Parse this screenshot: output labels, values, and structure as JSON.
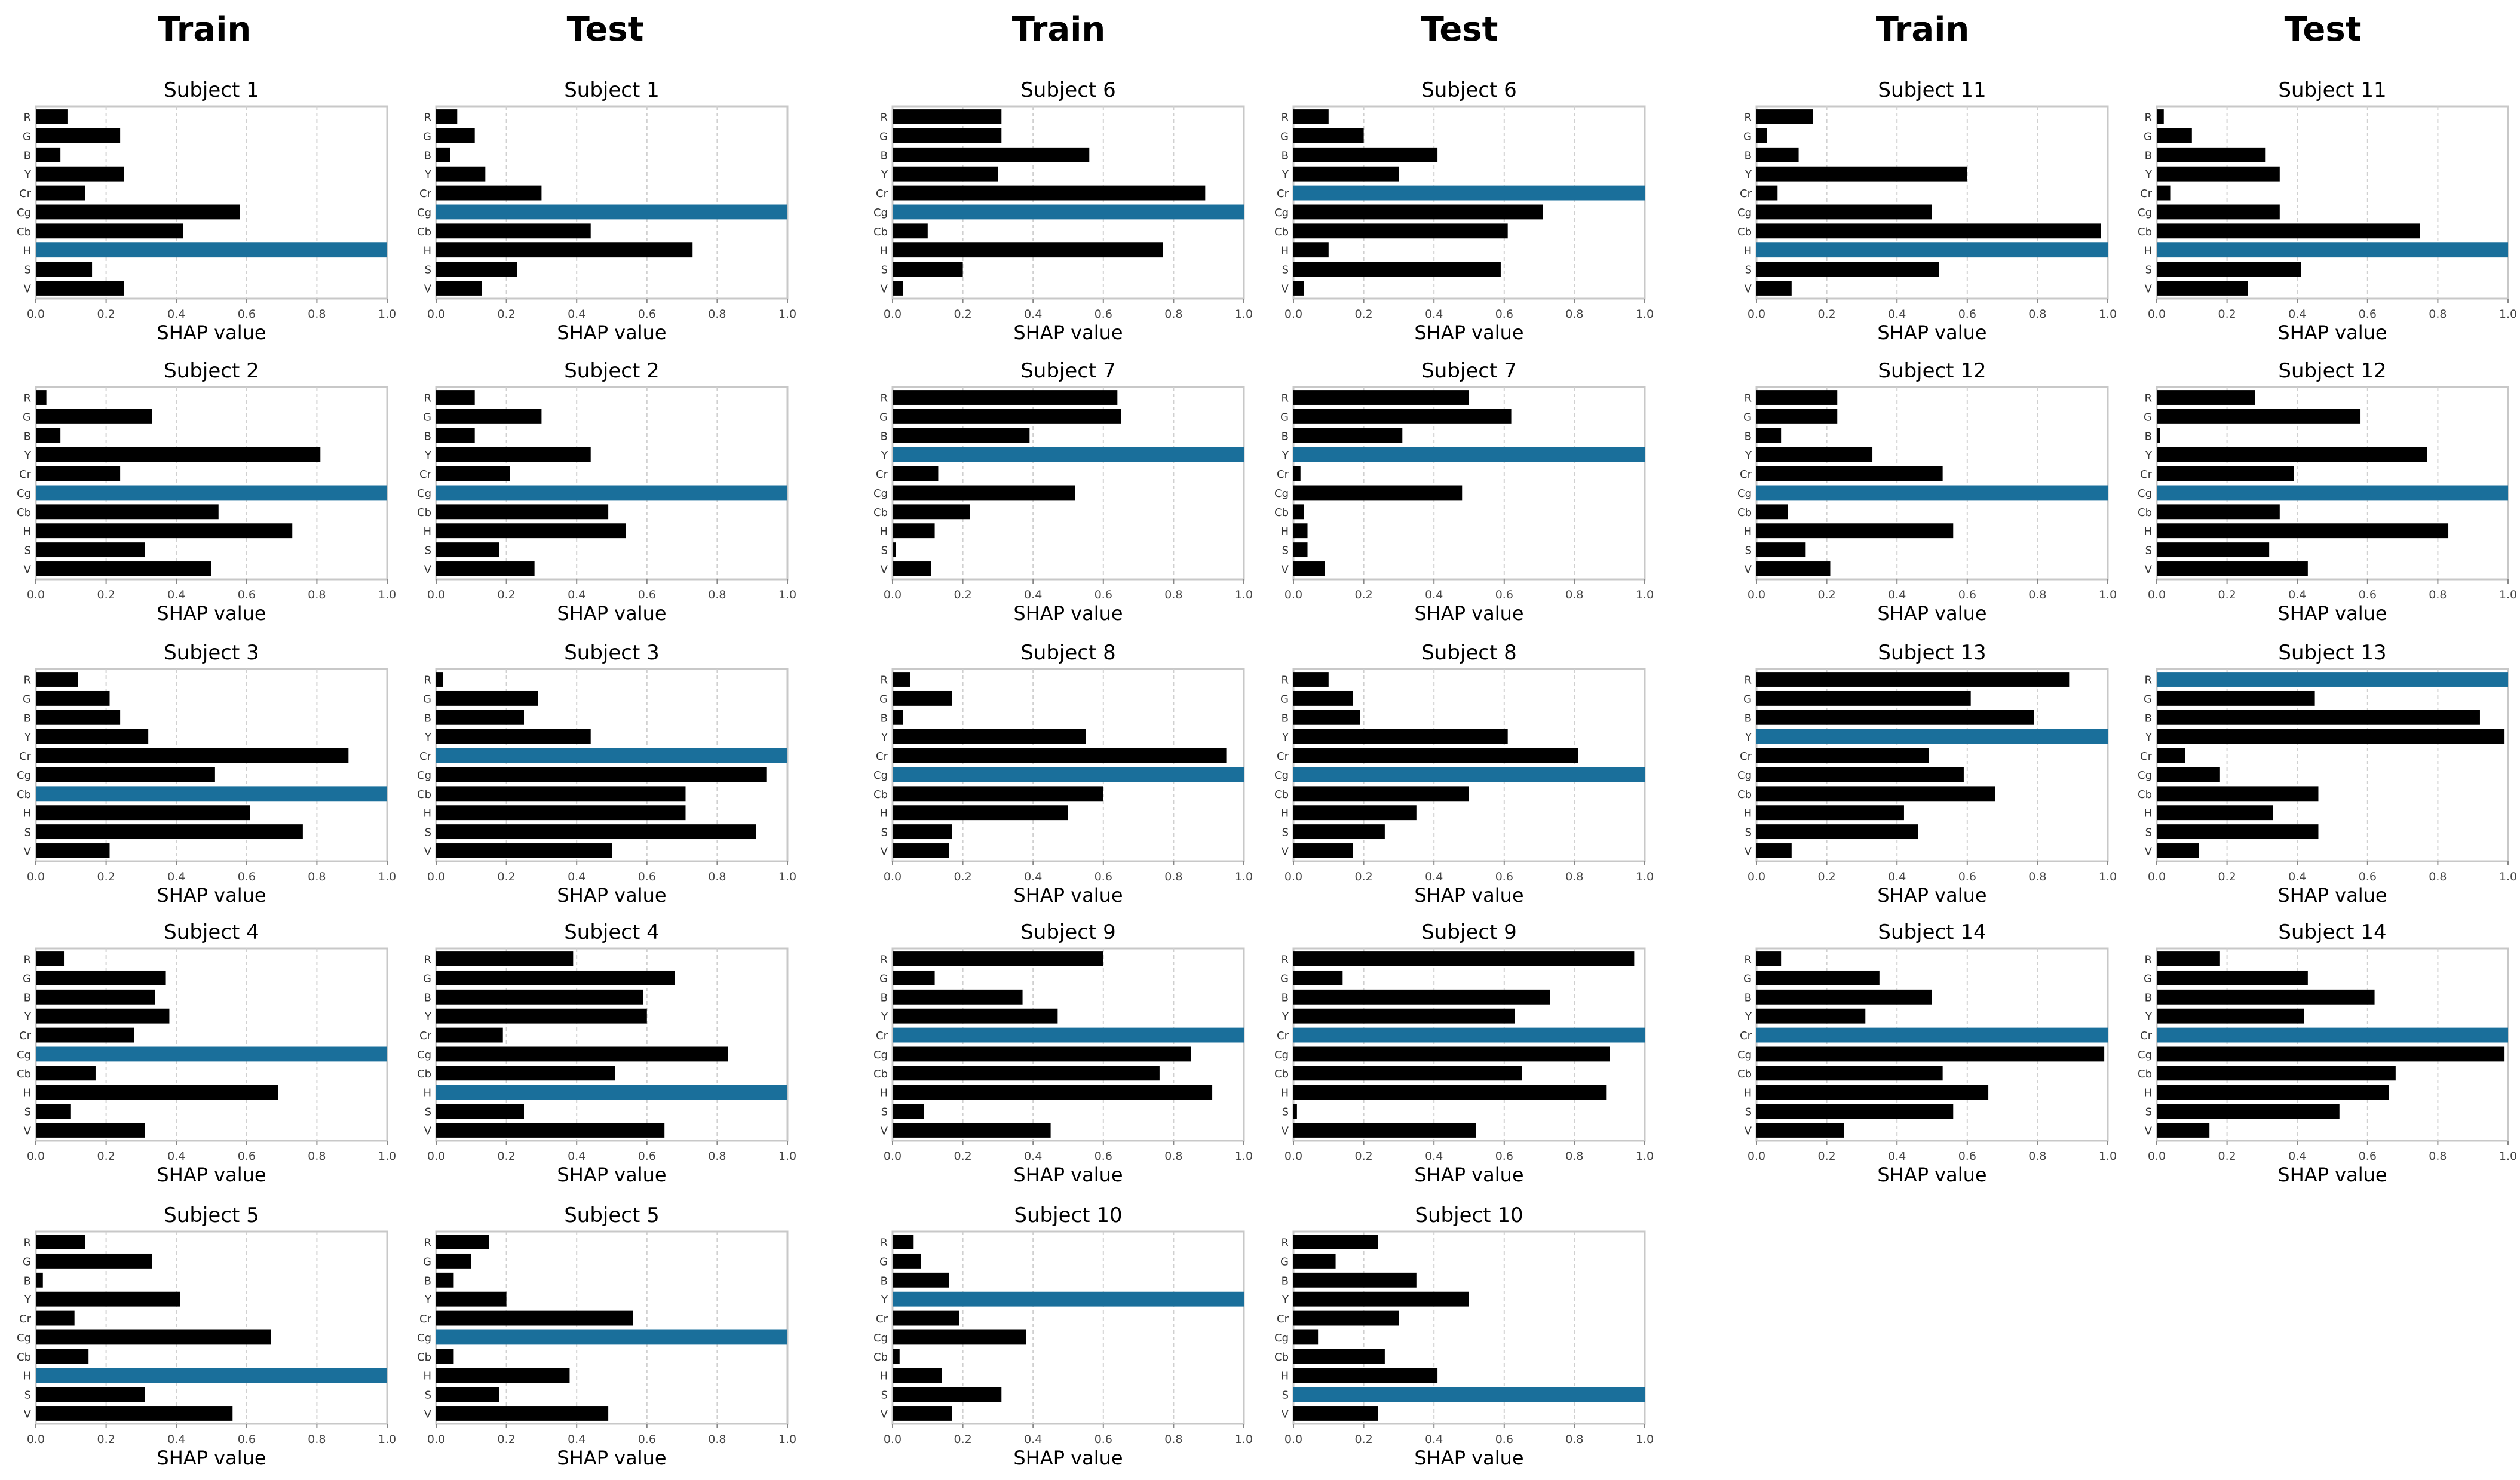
{
  "figure": {
    "column_headers": [
      "Train",
      "Test",
      "Train",
      "Test",
      "Train",
      "Test"
    ],
    "bar_color": "#000000",
    "highlight_color": "#1a6f9b",
    "axis_color": "#c8c8c8",
    "grid_color": "#d0d0d0"
  },
  "chart_data": {
    "type": "bar",
    "orientation": "horizontal",
    "features": [
      "R",
      "G",
      "B",
      "Y",
      "Cr",
      "Cg",
      "Cb",
      "H",
      "S",
      "V"
    ],
    "xlabel": "SHAP value",
    "xlim": [
      0,
      1.0
    ],
    "xticks": [
      "0.0",
      "0.2",
      "0.4",
      "0.6",
      "0.8",
      "1.0"
    ],
    "panels": [
      {
        "title": "Subject 1",
        "split": "Train",
        "values": [
          0.09,
          0.24,
          0.07,
          0.25,
          0.14,
          0.58,
          0.42,
          1.0,
          0.16,
          0.25
        ]
      },
      {
        "title": "Subject 1",
        "split": "Test",
        "values": [
          0.06,
          0.11,
          0.04,
          0.14,
          0.3,
          1.0,
          0.44,
          0.73,
          0.23,
          0.13
        ]
      },
      {
        "title": "Subject 2",
        "split": "Train",
        "values": [
          0.03,
          0.33,
          0.07,
          0.81,
          0.24,
          1.0,
          0.52,
          0.73,
          0.31,
          0.5
        ]
      },
      {
        "title": "Subject 2",
        "split": "Test",
        "values": [
          0.11,
          0.3,
          0.11,
          0.44,
          0.21,
          1.0,
          0.49,
          0.54,
          0.18,
          0.28
        ]
      },
      {
        "title": "Subject 3",
        "split": "Train",
        "values": [
          0.12,
          0.21,
          0.24,
          0.32,
          0.89,
          0.51,
          1.0,
          0.61,
          0.76,
          0.21
        ]
      },
      {
        "title": "Subject 3",
        "split": "Test",
        "values": [
          0.02,
          0.29,
          0.25,
          0.44,
          1.0,
          0.94,
          0.71,
          0.71,
          0.91,
          0.5
        ]
      },
      {
        "title": "Subject 4",
        "split": "Train",
        "values": [
          0.08,
          0.37,
          0.34,
          0.38,
          0.28,
          1.0,
          0.17,
          0.69,
          0.1,
          0.31
        ]
      },
      {
        "title": "Subject 4",
        "split": "Test",
        "values": [
          0.39,
          0.68,
          0.59,
          0.6,
          0.19,
          0.83,
          0.51,
          1.0,
          0.25,
          0.65
        ]
      },
      {
        "title": "Subject 5",
        "split": "Train",
        "values": [
          0.14,
          0.33,
          0.02,
          0.41,
          0.11,
          0.67,
          0.15,
          1.0,
          0.31,
          0.56
        ]
      },
      {
        "title": "Subject 5",
        "split": "Test",
        "values": [
          0.15,
          0.1,
          0.05,
          0.2,
          0.56,
          1.0,
          0.05,
          0.38,
          0.18,
          0.49
        ]
      },
      {
        "title": "Subject 6",
        "split": "Train",
        "values": [
          0.31,
          0.31,
          0.56,
          0.3,
          0.89,
          1.0,
          0.1,
          0.77,
          0.2,
          0.03
        ]
      },
      {
        "title": "Subject 6",
        "split": "Test",
        "values": [
          0.1,
          0.2,
          0.41,
          0.3,
          1.0,
          0.71,
          0.61,
          0.1,
          0.59,
          0.03
        ]
      },
      {
        "title": "Subject 7",
        "split": "Train",
        "values": [
          0.64,
          0.65,
          0.39,
          1.0,
          0.13,
          0.52,
          0.22,
          0.12,
          0.01,
          0.11
        ]
      },
      {
        "title": "Subject 7",
        "split": "Test",
        "values": [
          0.5,
          0.62,
          0.31,
          1.0,
          0.02,
          0.48,
          0.03,
          0.04,
          0.04,
          0.09
        ]
      },
      {
        "title": "Subject 8",
        "split": "Train",
        "values": [
          0.05,
          0.17,
          0.03,
          0.55,
          0.95,
          1.0,
          0.6,
          0.5,
          0.17,
          0.16
        ]
      },
      {
        "title": "Subject 8",
        "split": "Test",
        "values": [
          0.1,
          0.17,
          0.19,
          0.61,
          0.81,
          1.0,
          0.5,
          0.35,
          0.26,
          0.17
        ]
      },
      {
        "title": "Subject 9",
        "split": "Train",
        "values": [
          0.6,
          0.12,
          0.37,
          0.47,
          1.0,
          0.85,
          0.76,
          0.91,
          0.09,
          0.45
        ]
      },
      {
        "title": "Subject 9",
        "split": "Test",
        "values": [
          0.97,
          0.14,
          0.73,
          0.63,
          1.0,
          0.9,
          0.65,
          0.89,
          0.01,
          0.52
        ]
      },
      {
        "title": "Subject 10",
        "split": "Train",
        "values": [
          0.06,
          0.08,
          0.16,
          1.0,
          0.19,
          0.38,
          0.02,
          0.14,
          0.31,
          0.17
        ]
      },
      {
        "title": "Subject 10",
        "split": "Test",
        "values": [
          0.24,
          0.12,
          0.35,
          0.5,
          0.3,
          0.07,
          0.26,
          0.41,
          1.0,
          0.24
        ]
      },
      {
        "title": "Subject 11",
        "split": "Train",
        "values": [
          0.16,
          0.03,
          0.12,
          0.6,
          0.06,
          0.5,
          0.98,
          1.0,
          0.52,
          0.1
        ]
      },
      {
        "title": "Subject 11",
        "split": "Test",
        "values": [
          0.02,
          0.1,
          0.31,
          0.35,
          0.04,
          0.35,
          0.75,
          1.0,
          0.41,
          0.26
        ]
      },
      {
        "title": "Subject 12",
        "split": "Train",
        "values": [
          0.23,
          0.23,
          0.07,
          0.33,
          0.53,
          1.0,
          0.09,
          0.56,
          0.14,
          0.21
        ]
      },
      {
        "title": "Subject 12",
        "split": "Test",
        "values": [
          0.28,
          0.58,
          0.01,
          0.77,
          0.39,
          1.0,
          0.35,
          0.83,
          0.32,
          0.43
        ]
      },
      {
        "title": "Subject 13",
        "split": "Train",
        "values": [
          0.89,
          0.61,
          0.79,
          1.0,
          0.49,
          0.59,
          0.68,
          0.42,
          0.46,
          0.1
        ]
      },
      {
        "title": "Subject 13",
        "split": "Test",
        "values": [
          1.0,
          0.45,
          0.92,
          0.99,
          0.08,
          0.18,
          0.46,
          0.33,
          0.46,
          0.12
        ]
      },
      {
        "title": "Subject 14",
        "split": "Train",
        "values": [
          0.07,
          0.35,
          0.5,
          0.31,
          1.0,
          0.99,
          0.53,
          0.66,
          0.56,
          0.25
        ]
      },
      {
        "title": "Subject 14",
        "split": "Test",
        "values": [
          0.18,
          0.43,
          0.62,
          0.42,
          1.0,
          0.99,
          0.68,
          0.66,
          0.52,
          0.15
        ]
      }
    ]
  }
}
